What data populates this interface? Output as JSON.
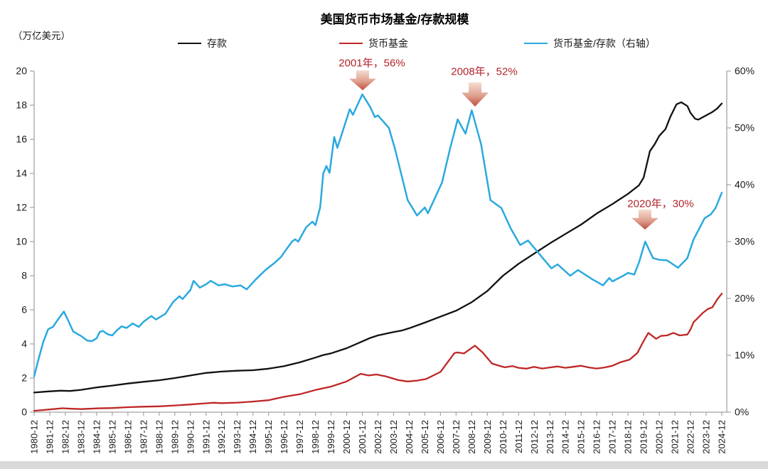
{
  "title": "美国货币市场基金/存款规模",
  "unit_label": "（万亿美元）",
  "legend": [
    {
      "label": "存款",
      "color": "#111111"
    },
    {
      "label": "货币基金",
      "color": "#be2726"
    },
    {
      "label": "货币基金/存款（右轴）",
      "color": "#2ba9df"
    }
  ],
  "annotations": [
    {
      "label": "2001年，56%",
      "year": "2001",
      "value_pct": 56
    },
    {
      "label": "2008年，52%",
      "year": "2008",
      "value_pct": 52
    },
    {
      "label": "2020年，30%",
      "year": "2020",
      "value_pct": 30
    }
  ],
  "chart_data": {
    "type": "line",
    "title": "美国货币市场基金/存款规模",
    "left_axis": {
      "label": "（万亿美元）",
      "min": 0,
      "max": 20,
      "step": 2,
      "tick_labels": [
        "0",
        "2",
        "4",
        "6",
        "8",
        "10",
        "12",
        "14",
        "16",
        "18",
        "20"
      ]
    },
    "right_axis": {
      "min": 0,
      "max": 60,
      "step": 10,
      "tick_labels": [
        "0%",
        "10%",
        "20%",
        "30%",
        "40%",
        "50%",
        "60%"
      ]
    },
    "x_axis": {
      "labels": [
        "1980-12",
        "1981-12",
        "1982-12",
        "1983-12",
        "1984-12",
        "1985-12",
        "1986-12",
        "1987-12",
        "1988-12",
        "1989-12",
        "1990-12",
        "1991-12",
        "1992-12",
        "1993-12",
        "1994-12",
        "1995-12",
        "1996-12",
        "1997-12",
        "1998-12",
        "1999-12",
        "2000-12",
        "2001-12",
        "2002-12",
        "2003-12",
        "2004-12",
        "2005-12",
        "2006-12",
        "2007-12",
        "2008-12",
        "2009-12",
        "2010-12",
        "2011-12",
        "2012-12",
        "2013-12",
        "2014-12",
        "2015-12",
        "2016-12",
        "2017-12",
        "2018-12",
        "2019-12",
        "2020-12",
        "2021-12",
        "2022-12",
        "2023-12",
        "2024-12"
      ]
    },
    "series": [
      {
        "name": "存款",
        "axis": "left",
        "color": "#111111",
        "width": 2.3,
        "points": [
          [
            0,
            1.15
          ],
          [
            1,
            1.22
          ],
          [
            1.7,
            1.26
          ],
          [
            2.3,
            1.24
          ],
          [
            3,
            1.31
          ],
          [
            4,
            1.45
          ],
          [
            5,
            1.56
          ],
          [
            6,
            1.68
          ],
          [
            7,
            1.78
          ],
          [
            8,
            1.87
          ],
          [
            9,
            2.0
          ],
          [
            10,
            2.15
          ],
          [
            11,
            2.3
          ],
          [
            12,
            2.38
          ],
          [
            13,
            2.43
          ],
          [
            14,
            2.46
          ],
          [
            15,
            2.55
          ],
          [
            16,
            2.7
          ],
          [
            17,
            2.92
          ],
          [
            18,
            3.2
          ],
          [
            18.5,
            3.35
          ],
          [
            19,
            3.45
          ],
          [
            20,
            3.75
          ],
          [
            21,
            4.15
          ],
          [
            21.5,
            4.35
          ],
          [
            22,
            4.5
          ],
          [
            23,
            4.7
          ],
          [
            23.5,
            4.78
          ],
          [
            24,
            4.92
          ],
          [
            25,
            5.25
          ],
          [
            26,
            5.6
          ],
          [
            27,
            5.95
          ],
          [
            28,
            6.45
          ],
          [
            29,
            7.1
          ],
          [
            30,
            8.0
          ],
          [
            31,
            8.7
          ],
          [
            32,
            9.3
          ],
          [
            33,
            9.9
          ],
          [
            34,
            10.45
          ],
          [
            35,
            11.0
          ],
          [
            36,
            11.65
          ],
          [
            37,
            12.2
          ],
          [
            37.5,
            12.5
          ],
          [
            38,
            12.8
          ],
          [
            38.7,
            13.3
          ],
          [
            39,
            13.75
          ],
          [
            39.4,
            15.3
          ],
          [
            39.7,
            15.7
          ],
          [
            40,
            16.2
          ],
          [
            40.4,
            16.6
          ],
          [
            40.7,
            17.3
          ],
          [
            41.1,
            18.05
          ],
          [
            41.4,
            18.17
          ],
          [
            41.8,
            17.95
          ],
          [
            42.0,
            17.55
          ],
          [
            42.3,
            17.2
          ],
          [
            42.5,
            17.15
          ],
          [
            43.0,
            17.4
          ],
          [
            43.4,
            17.6
          ],
          [
            43.7,
            17.8
          ],
          [
            44,
            18.1
          ]
        ]
      },
      {
        "name": "货币基金",
        "axis": "left",
        "color": "#be2726",
        "width": 2.3,
        "points": [
          [
            0,
            0.08
          ],
          [
            0.5,
            0.12
          ],
          [
            1,
            0.16
          ],
          [
            1.8,
            0.23
          ],
          [
            2.4,
            0.2
          ],
          [
            3,
            0.18
          ],
          [
            4,
            0.22
          ],
          [
            5,
            0.24
          ],
          [
            6,
            0.29
          ],
          [
            7,
            0.32
          ],
          [
            8,
            0.34
          ],
          [
            9,
            0.39
          ],
          [
            10,
            0.45
          ],
          [
            11,
            0.52
          ],
          [
            11.5,
            0.55
          ],
          [
            12,
            0.53
          ],
          [
            13,
            0.56
          ],
          [
            14,
            0.62
          ],
          [
            15,
            0.7
          ],
          [
            16,
            0.9
          ],
          [
            17,
            1.05
          ],
          [
            18,
            1.3
          ],
          [
            19,
            1.5
          ],
          [
            20,
            1.8
          ],
          [
            20.9,
            2.25
          ],
          [
            21.4,
            2.15
          ],
          [
            21.9,
            2.21
          ],
          [
            22.5,
            2.1
          ],
          [
            23.3,
            1.88
          ],
          [
            23.9,
            1.8
          ],
          [
            24.5,
            1.85
          ],
          [
            25.1,
            1.95
          ],
          [
            26,
            2.36
          ],
          [
            26.9,
            3.47
          ],
          [
            27.1,
            3.5
          ],
          [
            27.5,
            3.44
          ],
          [
            28.2,
            3.9
          ],
          [
            28.7,
            3.5
          ],
          [
            29.3,
            2.85
          ],
          [
            30.1,
            2.63
          ],
          [
            30.6,
            2.7
          ],
          [
            31,
            2.6
          ],
          [
            31.5,
            2.55
          ],
          [
            32,
            2.66
          ],
          [
            32.5,
            2.56
          ],
          [
            33,
            2.62
          ],
          [
            33.5,
            2.68
          ],
          [
            34,
            2.6
          ],
          [
            34.5,
            2.66
          ],
          [
            35,
            2.72
          ],
          [
            35.5,
            2.62
          ],
          [
            36,
            2.56
          ],
          [
            36.5,
            2.62
          ],
          [
            37,
            2.72
          ],
          [
            37.5,
            2.92
          ],
          [
            38.1,
            3.08
          ],
          [
            38.6,
            3.47
          ],
          [
            39.0,
            4.17
          ],
          [
            39.3,
            4.65
          ],
          [
            39.8,
            4.3
          ],
          [
            40.1,
            4.47
          ],
          [
            40.5,
            4.5
          ],
          [
            40.9,
            4.65
          ],
          [
            41.3,
            4.5
          ],
          [
            41.8,
            4.55
          ],
          [
            42.0,
            4.85
          ],
          [
            42.2,
            5.28
          ],
          [
            42.5,
            5.55
          ],
          [
            42.8,
            5.83
          ],
          [
            43.1,
            6.04
          ],
          [
            43.4,
            6.15
          ],
          [
            43.7,
            6.6
          ],
          [
            44,
            6.95
          ]
        ]
      },
      {
        "name": "货币基金/存款（右轴）",
        "axis": "right",
        "color": "#2ba9df",
        "width": 2.5,
        "points": [
          [
            0,
            6.3
          ],
          [
            0.3,
            9.5
          ],
          [
            0.6,
            12.5
          ],
          [
            0.9,
            14.6
          ],
          [
            1.2,
            15.0
          ],
          [
            1.5,
            16.2
          ],
          [
            1.9,
            17.7
          ],
          [
            2.2,
            16.0
          ],
          [
            2.5,
            14.2
          ],
          [
            3.0,
            13.4
          ],
          [
            3.4,
            12.6
          ],
          [
            3.7,
            12.5
          ],
          [
            4.0,
            13.0
          ],
          [
            4.2,
            14.1
          ],
          [
            4.4,
            14.3
          ],
          [
            4.7,
            13.7
          ],
          [
            5.0,
            13.5
          ],
          [
            5.3,
            14.4
          ],
          [
            5.6,
            15.1
          ],
          [
            5.9,
            14.8
          ],
          [
            6.3,
            15.6
          ],
          [
            6.7,
            15.0
          ],
          [
            7.0,
            15.9
          ],
          [
            7.5,
            16.9
          ],
          [
            7.8,
            16.3
          ],
          [
            8.4,
            17.3
          ],
          [
            8.9,
            19.4
          ],
          [
            9.3,
            20.4
          ],
          [
            9.5,
            19.9
          ],
          [
            10.0,
            21.5
          ],
          [
            10.2,
            23.1
          ],
          [
            10.6,
            21.9
          ],
          [
            11.0,
            22.5
          ],
          [
            11.3,
            23.1
          ],
          [
            11.8,
            22.3
          ],
          [
            12.2,
            22.5
          ],
          [
            12.7,
            22.1
          ],
          [
            13.2,
            22.3
          ],
          [
            13.6,
            21.6
          ],
          [
            14.2,
            23.4
          ],
          [
            14.8,
            25.0
          ],
          [
            15.4,
            26.3
          ],
          [
            15.8,
            27.3
          ],
          [
            16.0,
            28.1
          ],
          [
            16.5,
            30.0
          ],
          [
            16.7,
            30.4
          ],
          [
            16.9,
            30.0
          ],
          [
            17.4,
            32.5
          ],
          [
            17.8,
            33.5
          ],
          [
            18.0,
            32.9
          ],
          [
            18.3,
            36.0
          ],
          [
            18.5,
            42.0
          ],
          [
            18.7,
            43.3
          ],
          [
            18.9,
            42.1
          ],
          [
            19.2,
            48.4
          ],
          [
            19.4,
            46.5
          ],
          [
            20.2,
            53.3
          ],
          [
            20.4,
            52.3
          ],
          [
            21.0,
            55.9
          ],
          [
            21.5,
            53.7
          ],
          [
            21.8,
            51.9
          ],
          [
            22.0,
            52.2
          ],
          [
            22.7,
            50.0
          ],
          [
            23.1,
            46.2
          ],
          [
            23.9,
            37.3
          ],
          [
            24.5,
            34.6
          ],
          [
            25.0,
            36.0
          ],
          [
            25.2,
            35.0
          ],
          [
            26.1,
            40.4
          ],
          [
            26.6,
            46.2
          ],
          [
            27.1,
            51.5
          ],
          [
            27.6,
            49.0
          ],
          [
            28.0,
            53.1
          ],
          [
            28.6,
            47.1
          ],
          [
            29.2,
            37.3
          ],
          [
            29.9,
            35.9
          ],
          [
            30.5,
            32.3
          ],
          [
            31.1,
            29.4
          ],
          [
            31.6,
            30.2
          ],
          [
            33.1,
            25.3
          ],
          [
            33.5,
            26.0
          ],
          [
            34.3,
            24.0
          ],
          [
            34.8,
            25.0
          ],
          [
            35.7,
            23.4
          ],
          [
            36.4,
            22.3
          ],
          [
            36.8,
            23.6
          ],
          [
            37.0,
            23.0
          ],
          [
            37.7,
            24.0
          ],
          [
            38.0,
            24.5
          ],
          [
            38.4,
            24.2
          ],
          [
            38.7,
            26.3
          ],
          [
            39.1,
            30.0
          ],
          [
            39.6,
            27.1
          ],
          [
            40.0,
            26.8
          ],
          [
            40.5,
            26.7
          ],
          [
            41.2,
            25.4
          ],
          [
            41.8,
            27.1
          ],
          [
            42.2,
            30.4
          ],
          [
            42.6,
            32.5
          ],
          [
            42.9,
            34.1
          ],
          [
            43.3,
            34.8
          ],
          [
            43.6,
            35.9
          ],
          [
            44,
            38.6
          ]
        ]
      }
    ],
    "legend_position": "top",
    "grid": false
  },
  "arrow_colors": {
    "top": "#f5ddd3",
    "mid": "#dfa08d",
    "tip": "#bf4f3f"
  }
}
